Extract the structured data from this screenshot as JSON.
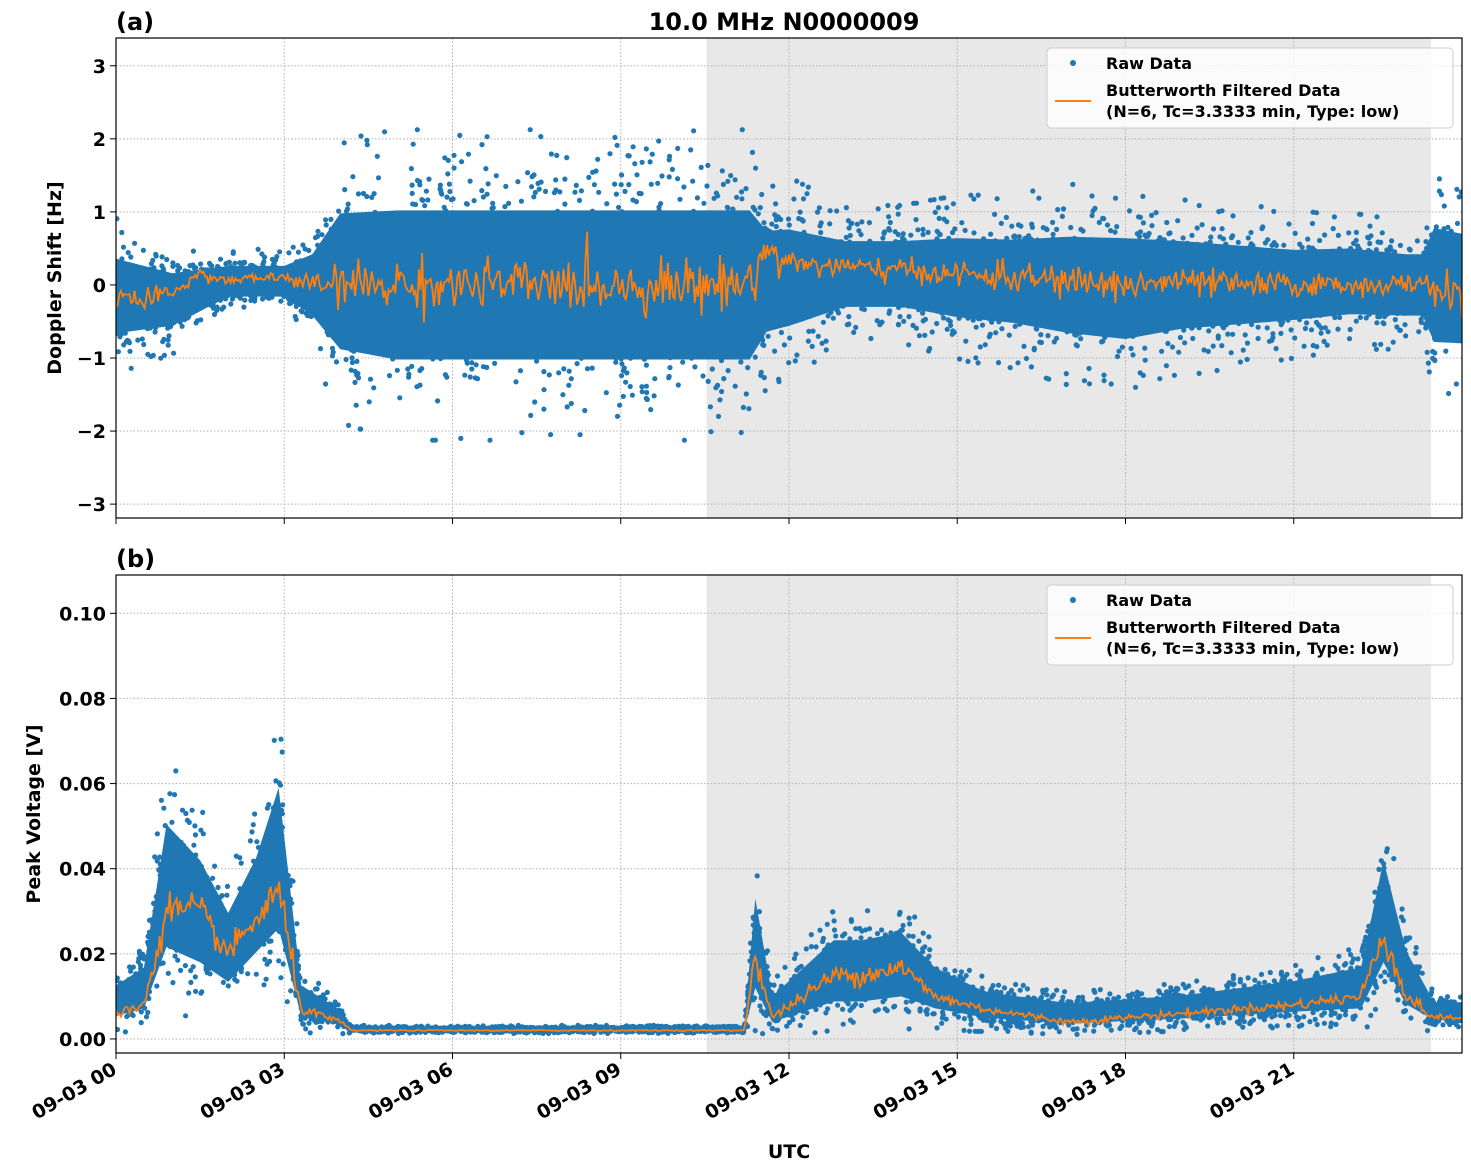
{
  "chart_data": [
    {
      "type": "scatter",
      "panel_label": "(a)",
      "title": "10.0 MHz N0000009",
      "xlabel": "",
      "ylabel": "Doppler Shift [Hz]",
      "xlim_hours": [
        0,
        24
      ],
      "ylim": [
        -3.19,
        3.38
      ],
      "yticks": [
        -3,
        -2,
        -1,
        0,
        1,
        2,
        3
      ],
      "ytick_labels": [
        "−3",
        "−2",
        "−1",
        "0",
        "1",
        "2",
        "3"
      ],
      "grid": true,
      "legend_position": "top-right",
      "shaded_region_hours": [
        10.53,
        23.45
      ],
      "series": [
        {
          "name": "Raw Data",
          "color": "#1f77b4",
          "kind": "scatter",
          "envelope": {
            "hours": [
              0,
              1,
              2,
              3,
              3.5,
              4,
              5,
              7,
              9,
              10.5,
              11.3,
              11.6,
              12,
              13,
              14,
              15,
              16,
              17,
              18,
              19,
              20,
              21,
              22,
              23,
              23.3,
              23.5,
              24
            ],
            "low": [
              -1.0,
              -0.8,
              -0.3,
              -0.3,
              -0.7,
              -1.5,
              -1.7,
              -1.7,
              -1.7,
              -1.7,
              -1.7,
              -1.1,
              -1.0,
              -0.6,
              -0.6,
              -0.8,
              -0.9,
              -1.1,
              -1.2,
              -1.0,
              -0.9,
              -0.8,
              -0.7,
              -0.7,
              -0.7,
              -1.3,
              -1.3
            ],
            "high": [
              0.7,
              0.4,
              0.4,
              0.4,
              0.7,
              1.6,
              1.7,
              1.7,
              1.7,
              1.7,
              1.7,
              1.2,
              1.2,
              0.9,
              0.9,
              1.0,
              1.0,
              1.1,
              1.1,
              1.0,
              0.9,
              0.8,
              0.8,
              0.7,
              0.7,
              1.3,
              1.2
            ]
          }
        },
        {
          "name": "Butterworth Filtered Data\n(N=6, Tc=3.3333 min, Type: low)",
          "color": "#ff7f0e",
          "kind": "line",
          "hours": [
            0,
            0.5,
            1,
            1.5,
            2,
            2.5,
            3,
            3.5,
            4,
            5,
            7,
            9,
            10.5,
            11.3,
            11.6,
            12,
            13,
            14,
            15,
            16,
            17,
            18,
            19,
            20,
            21,
            22,
            23,
            23.5,
            24
          ],
          "values": [
            -0.1,
            -0.25,
            -0.1,
            0.15,
            0.05,
            0.1,
            0.1,
            0.0,
            0.0,
            0.0,
            0.0,
            0.0,
            0.0,
            0.05,
            0.5,
            0.3,
            0.25,
            0.2,
            0.15,
            0.1,
            0.05,
            0.0,
            0.05,
            0.0,
            0.0,
            0.0,
            0.0,
            0.0,
            -0.2
          ]
        }
      ]
    },
    {
      "type": "scatter",
      "panel_label": "(b)",
      "xlabel": "UTC",
      "ylabel": "Peak Voltage [V]",
      "xlim_hours": [
        0,
        24
      ],
      "xtick_labels": [
        "09-03 00",
        "09-03 03",
        "09-03 06",
        "09-03 09",
        "09-03 12",
        "09-03 15",
        "09-03 18",
        "09-03 21"
      ],
      "ylim": [
        -0.0033,
        0.109
      ],
      "yticks": [
        0,
        0.02,
        0.04,
        0.06,
        0.08,
        0.1
      ],
      "ytick_labels": [
        "0.00",
        "0.02",
        "0.04",
        "0.06",
        "0.08",
        "0.10"
      ],
      "grid": true,
      "legend_position": "top-right",
      "shaded_region_hours": [
        10.53,
        23.45
      ],
      "series": [
        {
          "name": "Raw Data",
          "color": "#1f77b4",
          "kind": "scatter",
          "envelope": {
            "hours": [
              0,
              0.5,
              0.9,
              1.5,
              2,
              2.5,
              2.9,
              3.3,
              4,
              4.2,
              11.2,
              11.4,
              11.7,
              12.8,
              13.3,
              14,
              14.6,
              15.5,
              17,
              19,
              21,
              22.2,
              22.6,
              23,
              23.5,
              24
            ],
            "low": [
              0.003,
              0.004,
              0.012,
              0.01,
              0.008,
              0.013,
              0.015,
              0.003,
              0.002,
              0.0015,
              0.0015,
              0.005,
              0.002,
              0.004,
              0.004,
              0.005,
              0.004,
              0.003,
              0.002,
              0.003,
              0.004,
              0.004,
              0.01,
              0.004,
              0.003,
              0.003
            ],
            "high": [
              0.015,
              0.02,
              0.06,
              0.05,
              0.035,
              0.05,
              0.07,
              0.015,
              0.008,
              0.003,
              0.003,
              0.04,
              0.012,
              0.028,
              0.028,
              0.03,
              0.02,
              0.013,
              0.01,
              0.012,
              0.016,
              0.02,
              0.05,
              0.025,
              0.01,
              0.01
            ]
          }
        },
        {
          "name": "Butterworth Filtered Data\n(N=6, Tc=3.3333 min, Type: low)",
          "color": "#ff7f0e",
          "kind": "line",
          "hours": [
            0,
            0.5,
            0.9,
            1.5,
            2,
            2.5,
            2.9,
            3.3,
            4,
            4.2,
            11.2,
            11.4,
            11.7,
            12.8,
            13.3,
            14,
            14.6,
            15.5,
            17,
            19,
            21,
            22.2,
            22.6,
            23,
            23.5,
            24
          ],
          "values": [
            0.006,
            0.008,
            0.03,
            0.03,
            0.02,
            0.028,
            0.035,
            0.007,
            0.004,
            0.002,
            0.002,
            0.02,
            0.005,
            0.015,
            0.015,
            0.017,
            0.01,
            0.007,
            0.004,
            0.006,
            0.008,
            0.01,
            0.025,
            0.01,
            0.005,
            0.005
          ]
        }
      ]
    }
  ],
  "legend": {
    "raw": "Raw Data",
    "filt_line1": "Butterworth Filtered Data",
    "filt_line2": "(N=6, Tc=3.3333 min, Type: low)"
  }
}
